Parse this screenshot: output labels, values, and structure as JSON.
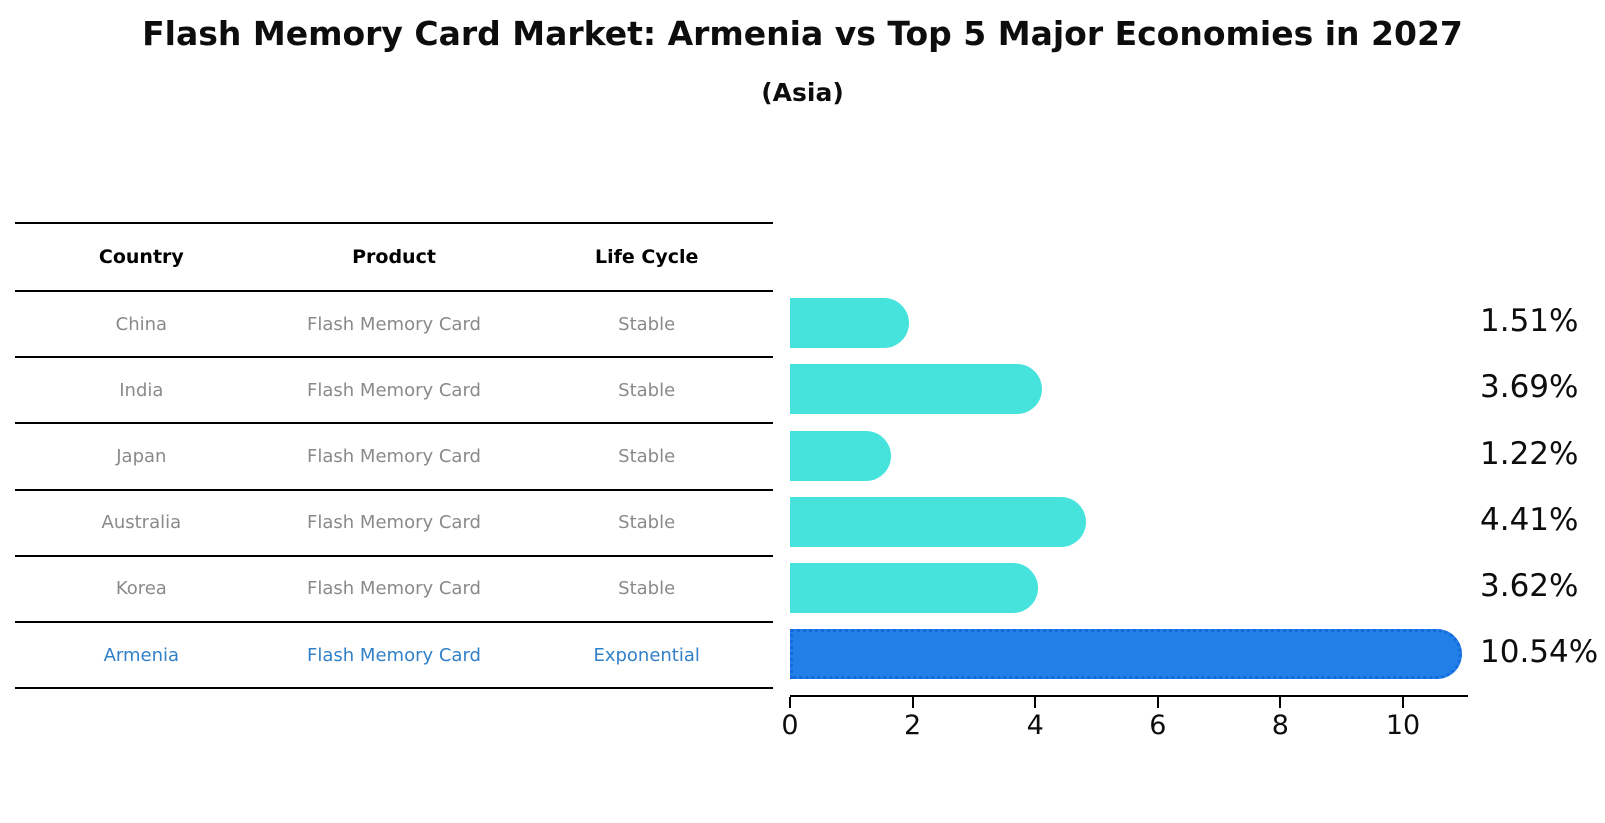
{
  "header": {
    "title": "Flash Memory Card Market: Armenia vs Top 5 Major Economies in 2027",
    "subtitle": "(Asia)"
  },
  "table": {
    "columns": [
      "Country",
      "Product",
      "Life Cycle"
    ],
    "rows": [
      {
        "country": "China",
        "product": "Flash Memory Card",
        "life_cycle": "Stable",
        "highlight": false
      },
      {
        "country": "India",
        "product": "Flash Memory Card",
        "life_cycle": "Stable",
        "highlight": false
      },
      {
        "country": "Japan",
        "product": "Flash Memory Card",
        "life_cycle": "Stable",
        "highlight": false
      },
      {
        "country": "Australia",
        "product": "Flash Memory Card",
        "life_cycle": "Stable",
        "highlight": false
      },
      {
        "country": "Korea",
        "product": "Flash Memory Card",
        "life_cycle": "Stable",
        "highlight": false
      },
      {
        "country": "Armenia",
        "product": "Flash Memory Card",
        "life_cycle": "Exponential",
        "highlight": true
      }
    ]
  },
  "chart_data": {
    "type": "bar",
    "orientation": "horizontal",
    "title": "Flash Memory Card Market: Armenia vs Top 5 Major Economies in 2027 (Asia)",
    "categories": [
      "China",
      "India",
      "Japan",
      "Australia",
      "Korea",
      "Armenia"
    ],
    "values": [
      1.51,
      3.69,
      1.22,
      4.41,
      3.62,
      10.54
    ],
    "bar_labels": [
      "1.51%",
      "3.69%",
      "1.22%",
      "4.41%",
      "3.62%",
      "10.54%"
    ],
    "x_ticks": [
      0,
      2,
      4,
      6,
      8,
      10
    ],
    "xlim": [
      0,
      11.07
    ],
    "grid": false,
    "legend": "none",
    "bar_color": "#46E3DC",
    "highlight_bar_color": "#2080E8",
    "highlight_border_color": "#1569DC",
    "highlight_text_color": "#3180C8",
    "table_text_color": "#8a8a8a"
  }
}
